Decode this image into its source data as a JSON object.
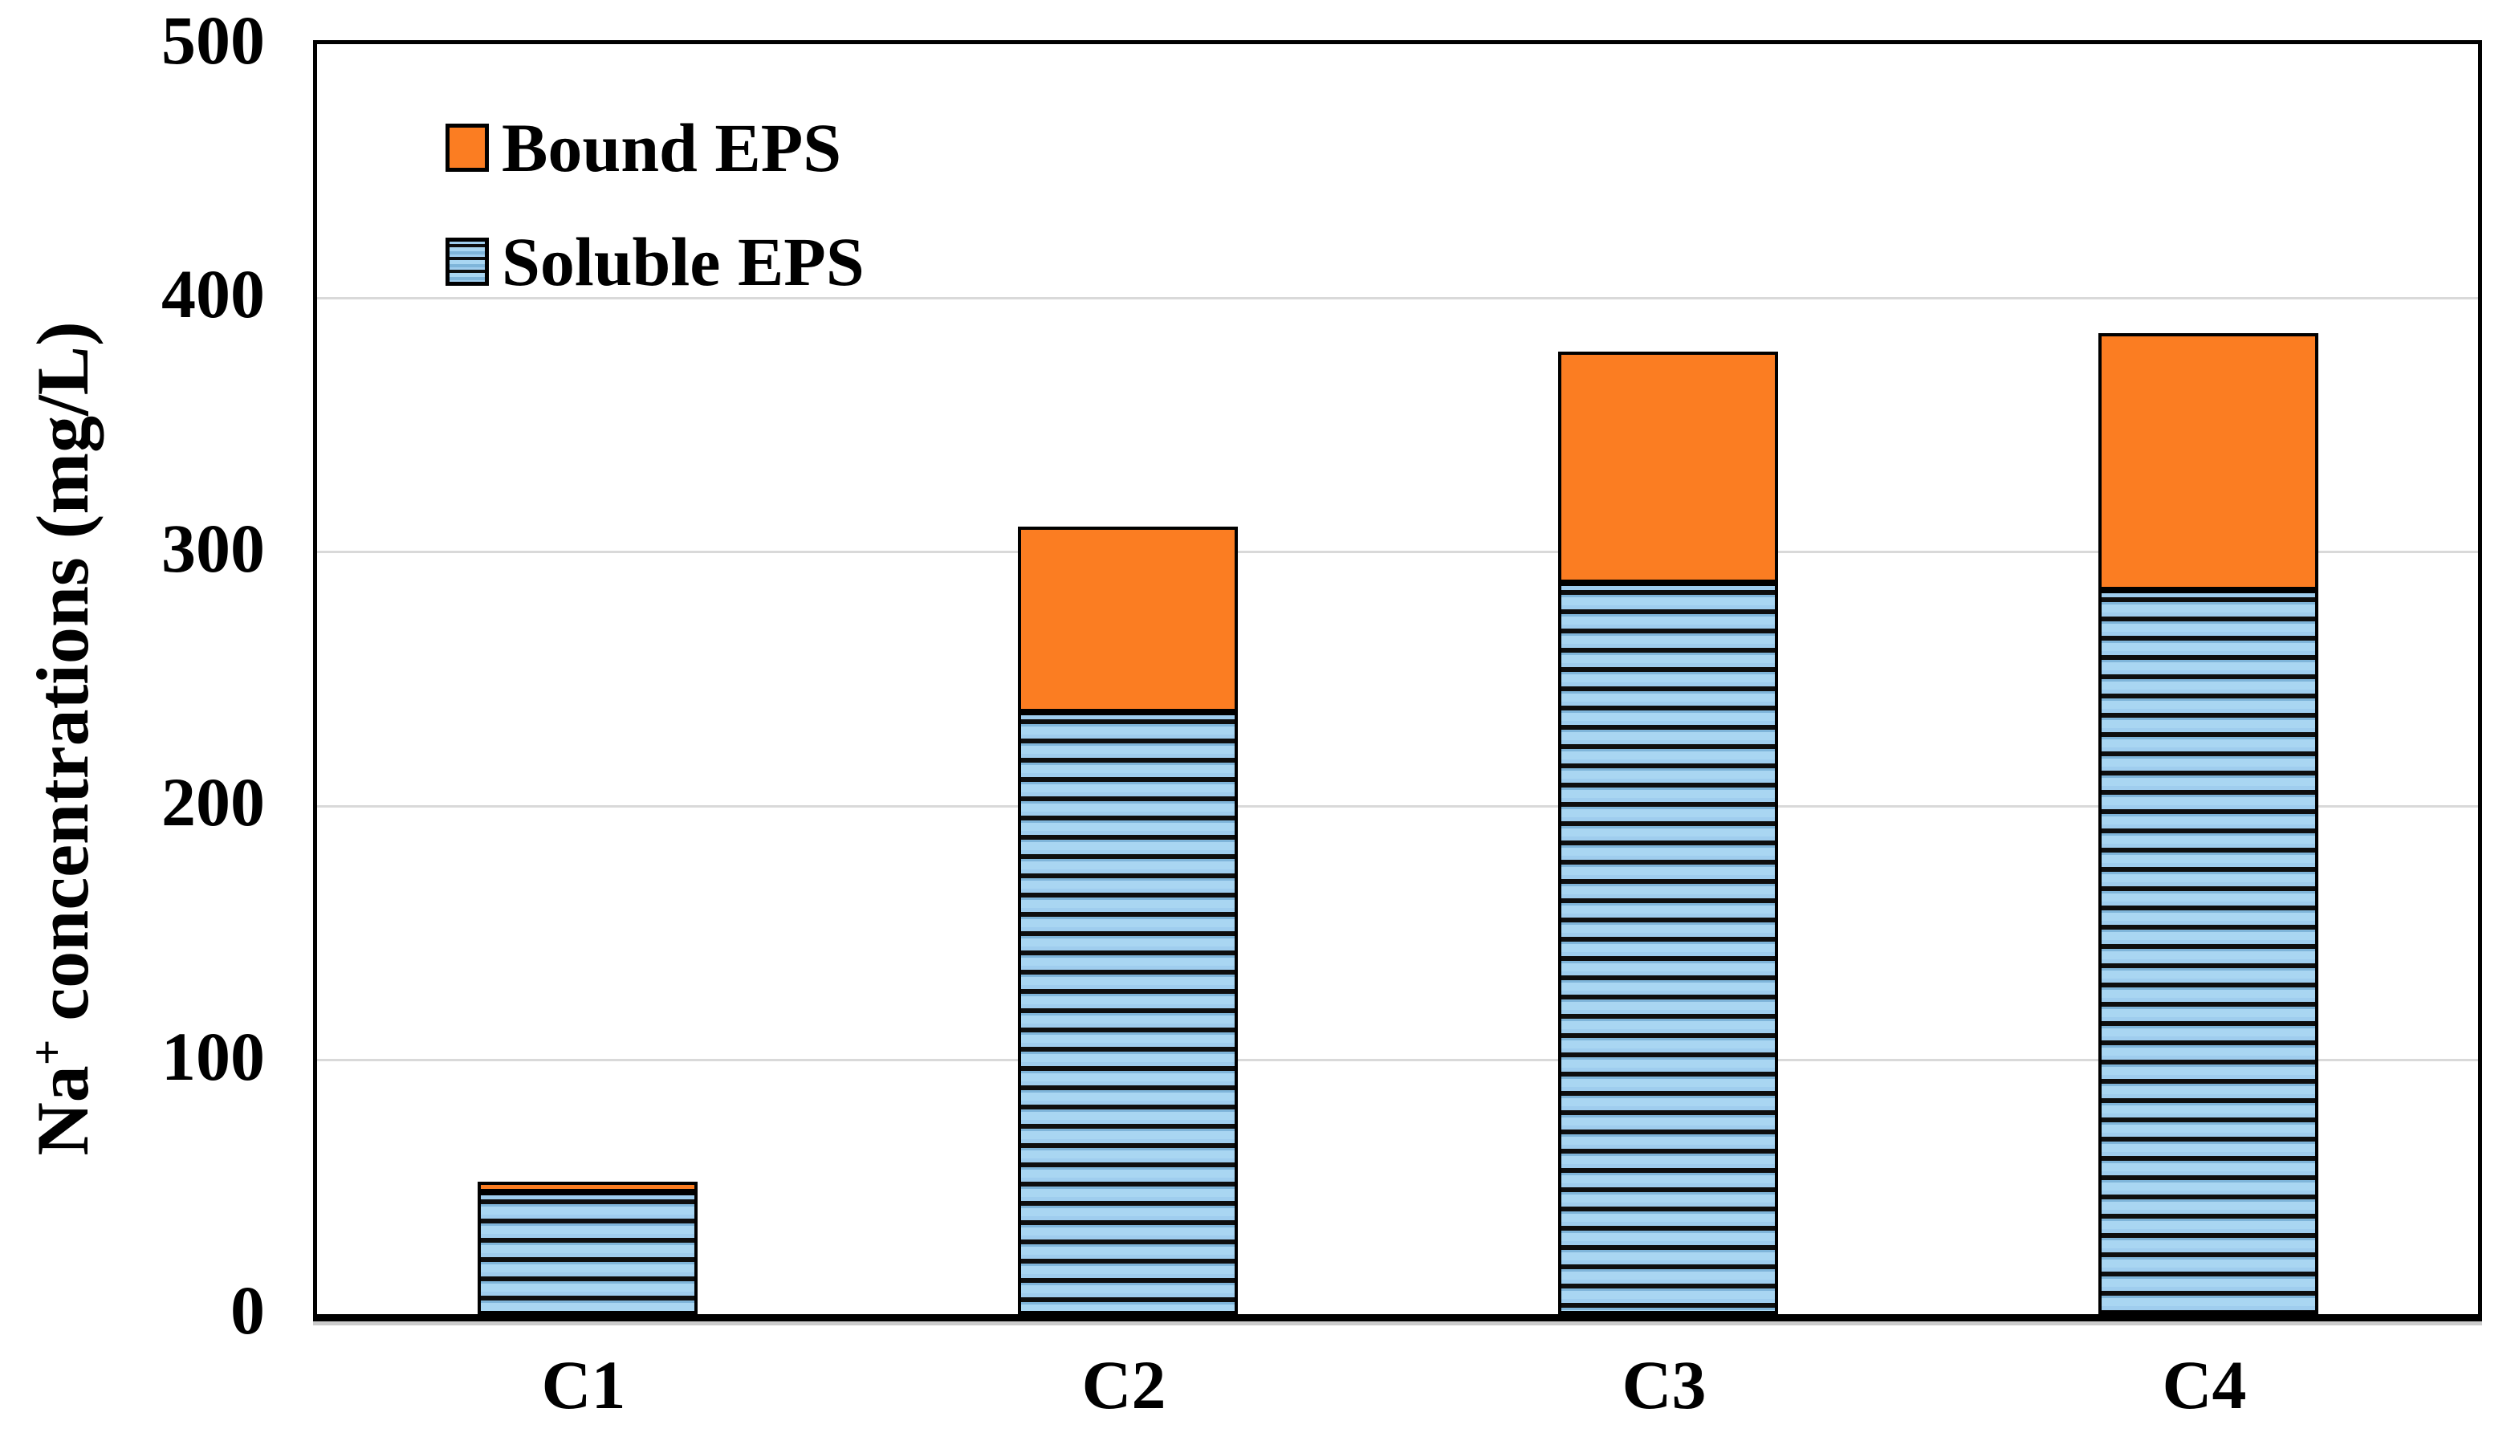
{
  "chart_data": {
    "type": "bar",
    "stacked": true,
    "title": "",
    "xlabel": "",
    "ylabel": "Na+ concentrations (mg/L)",
    "categories": [
      "C1",
      "C2",
      "C3",
      "C4"
    ],
    "series": [
      {
        "name": "Soluble EPS",
        "values": [
          48,
          237,
          288,
          285
        ],
        "color": "#8ec2e6",
        "pattern": "horizontal-stripes"
      },
      {
        "name": "Bound EPS",
        "values": [
          4,
          73,
          91,
          101
        ],
        "color": "#fb7d22",
        "pattern": "solid"
      }
    ],
    "totals": [
      52,
      310,
      379,
      386
    ],
    "ylim": [
      0,
      500
    ],
    "yticks": [
      0,
      100,
      200,
      300,
      400,
      500
    ],
    "grid": "horizontal-gridlines-at-100-intervals",
    "legend_position": "top-left-inside",
    "bar_outline_color": "#000000",
    "gridline_color": "#d9d9d9"
  },
  "y_axis": {
    "label_prefix": "Na",
    "label_sup": "+",
    "label_suffix": " concentrations (mg/L)"
  },
  "legend": {
    "items": [
      {
        "label": "Bound EPS",
        "swatch": "bound"
      },
      {
        "label": "Soluble EPS",
        "swatch": "soluble"
      }
    ]
  },
  "colors": {
    "bound_fill": "#fb7d22",
    "soluble_fill": "#8ec2e6",
    "soluble_stripe": "#0e0e0e",
    "outline": "#000000",
    "gridline": "#d9d9d9",
    "background": "#ffffff"
  }
}
